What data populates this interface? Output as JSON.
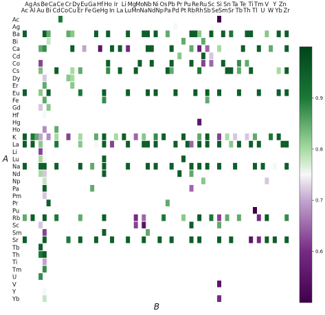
{
  "chart_data": {
    "type": "heatmap",
    "xlabel": "B",
    "ylabel": "A",
    "x_top_row1": [
      "Ag",
      "As",
      "Be",
      "Ca",
      "Ce",
      "Cr",
      "Dy",
      "Eu",
      "Ga",
      "Hf",
      "Ho",
      "Ir",
      "Li",
      "Mg",
      "Mo",
      "Nb",
      "Ni",
      "Os",
      "Pb",
      "Pr",
      "Pu",
      "Re",
      "Ru",
      "Sc",
      "Si",
      "Sn",
      "Ta",
      "Te",
      "Ti",
      "Tm",
      "V",
      "Y",
      "Zn"
    ],
    "x_top_row2": [
      "Ac",
      "Al",
      "Au",
      "Bi",
      "Cd",
      "Co",
      "Cu",
      "Er",
      "Fe",
      "Ge",
      "Hg",
      "In",
      "La",
      "Lu",
      "Mn",
      "Na",
      "Nd",
      "Np",
      "Pa",
      "Pd",
      "Pt",
      "Rb",
      "Rh",
      "Sb",
      "Se",
      "Sm",
      "Sr",
      "Tb",
      "Th",
      "Tl",
      "U",
      "W",
      "Yb",
      "Zr"
    ],
    "x_categories": [
      "Ac",
      "Ag",
      "Al",
      "As",
      "Au",
      "Be",
      "Bi",
      "Ca",
      "Cd",
      "Ce",
      "Co",
      "Cr",
      "Cu",
      "Dy",
      "Er",
      "Eu",
      "Fe",
      "Ga",
      "Ge",
      "Hf",
      "Hg",
      "Ho",
      "In",
      "Ir",
      "La",
      "Li",
      "Lu",
      "Mg",
      "Mn",
      "Mo",
      "Na",
      "Nb",
      "Nd",
      "Ni",
      "Np",
      "Os",
      "Pa",
      "Pb",
      "Pd",
      "Pr",
      "Pt",
      "Pu",
      "Rb",
      "Re",
      "Rh",
      "Ru",
      "Sb",
      "Sc",
      "Se",
      "Si",
      "Sm",
      "Sn",
      "Sr",
      "Ta",
      "Tb",
      "Te",
      "Th",
      "Ti",
      "Tl",
      "Tm",
      "U",
      "V",
      "W",
      "Y",
      "Yb",
      "Zn",
      "Zr"
    ],
    "y_categories": [
      "Ac",
      "Ag",
      "Ba",
      "Bi",
      "Ca",
      "Cd",
      "Co",
      "Cs",
      "Dy",
      "Er",
      "Eu",
      "Fe",
      "Gd",
      "Hf",
      "Hg",
      "Ho",
      "K",
      "La",
      "Li",
      "Lu",
      "Na",
      "Nd",
      "Np",
      "Pa",
      "Pm",
      "Pr",
      "Pu",
      "Rb",
      "Sc",
      "Sm",
      "Sr",
      "Tb",
      "Th",
      "Ti",
      "Tm",
      "U",
      "V",
      "Y",
      "Yb"
    ],
    "colorbar": {
      "min": 0.5,
      "max": 1.0,
      "ticks": [
        0.6,
        0.7,
        0.8,
        0.9
      ],
      "colormap": "PRGn"
    },
    "cells": [
      [
        "Ac",
        "Ce",
        0.9
      ],
      [
        "Ac",
        "Si",
        0.5
      ],
      [
        "Ag",
        "Pd",
        0.75
      ],
      [
        "Ba",
        "Ac",
        0.95
      ],
      [
        "Ba",
        "Be",
        0.95
      ],
      [
        "Ba",
        "Bi",
        0.85
      ],
      [
        "Ba",
        "Cr",
        0.85
      ],
      [
        "Ba",
        "Cu",
        0.82
      ],
      [
        "Ba",
        "Ge",
        0.95
      ],
      [
        "Ba",
        "Ho",
        0.95
      ],
      [
        "Ba",
        "Lu",
        0.95
      ],
      [
        "Ba",
        "Na",
        0.95
      ],
      [
        "Ba",
        "Nb",
        0.95
      ],
      [
        "Ba",
        "Ni",
        0.95
      ],
      [
        "Ba",
        "Pa",
        0.85
      ],
      [
        "Ba",
        "Rb",
        0.95
      ],
      [
        "Ba",
        "Re",
        0.95
      ],
      [
        "Ba",
        "Rh",
        0.82
      ],
      [
        "Ba",
        "Sc",
        0.95
      ],
      [
        "Ba",
        "Sm",
        0.95
      ],
      [
        "Ba",
        "Sr",
        0.9
      ],
      [
        "Ba",
        "Th",
        0.95
      ],
      [
        "Ba",
        "Ti",
        0.95
      ],
      [
        "Ba",
        "V",
        0.82
      ],
      [
        "Ba",
        "Yb",
        0.95
      ],
      [
        "Ba",
        "Zr",
        0.95
      ],
      [
        "Bi",
        "Bi",
        0.78
      ],
      [
        "Bi",
        "Pt",
        0.85
      ],
      [
        "Bi",
        "Ru",
        0.85
      ],
      [
        "Ca",
        "Au",
        0.85
      ],
      [
        "Ca",
        "Be",
        0.88
      ],
      [
        "Ca",
        "Cu",
        0.95
      ],
      [
        "Ca",
        "Eu",
        0.7
      ],
      [
        "Ca",
        "Hf",
        0.55
      ],
      [
        "Ca",
        "In",
        0.95
      ],
      [
        "Ca",
        "La",
        0.95
      ],
      [
        "Ca",
        "Lu",
        0.6
      ],
      [
        "Ca",
        "Nb",
        0.95
      ],
      [
        "Ca",
        "Nd",
        0.95
      ],
      [
        "Ca",
        "Pb",
        0.95
      ],
      [
        "Ca",
        "Rb",
        0.85
      ],
      [
        "Ca",
        "Rh",
        0.58
      ],
      [
        "Ca",
        "Sb",
        0.65
      ],
      [
        "Ca",
        "Si",
        0.8
      ],
      [
        "Ca",
        "Te",
        0.95
      ],
      [
        "Ca",
        "Tm",
        0.95
      ],
      [
        "Ca",
        "W",
        0.85
      ],
      [
        "Ca",
        "Zr",
        0.95
      ],
      [
        "Cd",
        "Pr",
        0.82
      ],
      [
        "Cd",
        "Ru",
        0.95
      ],
      [
        "Cd",
        "Sc",
        0.72
      ],
      [
        "Co",
        "Au",
        0.62
      ],
      [
        "Co",
        "Ho",
        0.95
      ],
      [
        "Co",
        "Mo",
        0.95
      ],
      [
        "Co",
        "Nd",
        0.95
      ],
      [
        "Co",
        "Pb",
        0.95
      ],
      [
        "Co",
        "Rb",
        0.95
      ],
      [
        "Co",
        "Ru",
        0.62
      ],
      [
        "Co",
        "Sc",
        0.65
      ],
      [
        "Co",
        "Sm",
        0.95
      ],
      [
        "Co",
        "Tb",
        0.88
      ],
      [
        "Co",
        "Th",
        0.85
      ],
      [
        "Cs",
        "Au",
        0.83
      ],
      [
        "Cs",
        "Cd",
        0.95
      ],
      [
        "Cs",
        "Cu",
        0.8
      ],
      [
        "Cs",
        "Er",
        0.85
      ],
      [
        "Cs",
        "Ho",
        0.88
      ],
      [
        "Cs",
        "La",
        0.95
      ],
      [
        "Cs",
        "Mn",
        0.95
      ],
      [
        "Cs",
        "Pa",
        0.95
      ],
      [
        "Cs",
        "Pb",
        0.85
      ],
      [
        "Cs",
        "Rh",
        0.9
      ],
      [
        "Cs",
        "Sn",
        0.95
      ],
      [
        "Cs",
        "Sr",
        0.95
      ],
      [
        "Cs",
        "Tb",
        0.85
      ],
      [
        "Cs",
        "Ti",
        0.95
      ],
      [
        "Cs",
        "Yb",
        0.8
      ],
      [
        "Cs",
        "Zr",
        0.95
      ],
      [
        "Dy",
        "Be",
        0.72
      ],
      [
        "Dy",
        "Cr",
        0.82
      ],
      [
        "Dy",
        "Cu",
        0.8
      ],
      [
        "Er",
        "Be",
        0.85
      ],
      [
        "Er",
        "Cu",
        0.82
      ],
      [
        "Eu",
        "Ac",
        0.95
      ],
      [
        "Eu",
        "Au",
        0.82
      ],
      [
        "Eu",
        "Bi",
        0.95
      ],
      [
        "Eu",
        "Er",
        0.9
      ],
      [
        "Eu",
        "Hg",
        0.95
      ],
      [
        "Eu",
        "Lu",
        0.95
      ],
      [
        "Eu",
        "Nb",
        0.95
      ],
      [
        "Eu",
        "Ni",
        0.95
      ],
      [
        "Eu",
        "Pd",
        0.95
      ],
      [
        "Eu",
        "Re",
        0.95
      ],
      [
        "Eu",
        "Sb",
        0.95
      ],
      [
        "Eu",
        "Si",
        0.95
      ],
      [
        "Eu",
        "Tb",
        0.95
      ],
      [
        "Eu",
        "Tm",
        0.95
      ],
      [
        "Eu",
        "Yb",
        0.95
      ],
      [
        "Eu",
        "Zr",
        0.95
      ],
      [
        "Fe",
        "Be",
        0.85
      ],
      [
        "Fe",
        "Hg",
        0.88
      ],
      [
        "Fe",
        "Sb",
        0.85
      ],
      [
        "Gd",
        "Au",
        0.72
      ],
      [
        "Gd",
        "Bi",
        0.82
      ],
      [
        "Hf",
        "Be",
        0.75
      ],
      [
        "Hg",
        "Rh",
        0.55
      ],
      [
        "Ho",
        "Be",
        0.68
      ],
      [
        "Ho",
        "Cd",
        0.85
      ],
      [
        "K",
        "Ac",
        0.95
      ],
      [
        "K",
        "Al",
        0.9
      ],
      [
        "K",
        "As",
        0.85
      ],
      [
        "K",
        "Au",
        0.7
      ],
      [
        "K",
        "Bi",
        0.68
      ],
      [
        "K",
        "Cd",
        0.8
      ],
      [
        "K",
        "Cr",
        0.62
      ],
      [
        "K",
        "Er",
        0.8
      ],
      [
        "K",
        "Ge",
        0.85
      ],
      [
        "K",
        "Hg",
        0.95
      ],
      [
        "K",
        "Ir",
        0.8
      ],
      [
        "K",
        "Li",
        0.95
      ],
      [
        "K",
        "Mn",
        0.65
      ],
      [
        "K",
        "Na",
        0.82
      ],
      [
        "K",
        "Ni",
        0.88
      ],
      [
        "K",
        "Os",
        0.95
      ],
      [
        "K",
        "Pt",
        0.95
      ],
      [
        "K",
        "Rh",
        0.85
      ],
      [
        "K",
        "Sb",
        0.95
      ],
      [
        "K",
        "Si",
        0.62
      ],
      [
        "K",
        "Sn",
        0.8
      ],
      [
        "K",
        "Ta",
        0.72
      ],
      [
        "K",
        "Th",
        0.72
      ],
      [
        "K",
        "Ti",
        0.75
      ],
      [
        "K",
        "Tl",
        0.85
      ],
      [
        "K",
        "W",
        0.9
      ],
      [
        "K",
        "Yb",
        0.95
      ],
      [
        "La",
        "Ac",
        0.95
      ],
      [
        "La",
        "Al",
        0.95
      ],
      [
        "La",
        "Au",
        0.82
      ],
      [
        "La",
        "Cd",
        0.9
      ],
      [
        "La",
        "Er",
        0.82
      ],
      [
        "La",
        "Ge",
        0.75
      ],
      [
        "La",
        "Hg",
        0.95
      ],
      [
        "La",
        "In",
        0.62
      ],
      [
        "La",
        "Lu",
        0.95
      ],
      [
        "La",
        "Na",
        0.95
      ],
      [
        "La",
        "Nb",
        0.95
      ],
      [
        "La",
        "Ni",
        0.95
      ],
      [
        "La",
        "Pd",
        0.95
      ],
      [
        "La",
        "Pu",
        0.95
      ],
      [
        "La",
        "Rb",
        0.65
      ],
      [
        "La",
        "Rh",
        0.95
      ],
      [
        "La",
        "Sb",
        0.95
      ],
      [
        "La",
        "Si",
        0.95
      ],
      [
        "La",
        "Sr",
        0.82
      ],
      [
        "La",
        "Tb",
        0.95
      ],
      [
        "La",
        "Ti",
        0.95
      ],
      [
        "La",
        "Tm",
        0.95
      ],
      [
        "La",
        "Zn",
        0.95
      ],
      [
        "La",
        "Zr",
        0.95
      ],
      [
        "Li",
        "Au",
        0.62
      ],
      [
        "Li",
        "Be",
        0.75
      ],
      [
        "Lu",
        "Au",
        0.8
      ],
      [
        "Lu",
        "Be",
        0.75
      ],
      [
        "Lu",
        "Hg",
        0.95
      ],
      [
        "Lu",
        "Pt",
        0.95
      ],
      [
        "Na",
        "Ac",
        0.95
      ],
      [
        "Na",
        "Au",
        0.95
      ],
      [
        "Na",
        "Be",
        0.95
      ],
      [
        "Na",
        "Cd",
        0.95
      ],
      [
        "Na",
        "Er",
        0.95
      ],
      [
        "Na",
        "Ga",
        0.85
      ],
      [
        "Na",
        "Hg",
        0.95
      ],
      [
        "Na",
        "Lu",
        0.95
      ],
      [
        "Na",
        "Nb",
        0.95
      ],
      [
        "Na",
        "Ni",
        0.95
      ],
      [
        "Na",
        "Pb",
        0.95
      ],
      [
        "Na",
        "Rb",
        0.95
      ],
      [
        "Na",
        "Rh",
        0.95
      ],
      [
        "Na",
        "Sb",
        0.95
      ],
      [
        "Na",
        "Si",
        0.95
      ],
      [
        "Na",
        "Ta",
        0.95
      ],
      [
        "Na",
        "Tl",
        0.95
      ],
      [
        "Na",
        "U",
        0.95
      ],
      [
        "Na",
        "Y",
        0.75
      ],
      [
        "Na",
        "Zr",
        0.95
      ],
      [
        "Nd",
        "Au",
        0.8
      ],
      [
        "Nd",
        "Be",
        0.72
      ],
      [
        "Nd",
        "Hg",
        0.95
      ],
      [
        "Nd",
        "Pr",
        0.95
      ],
      [
        "Nd",
        "Rb",
        0.85
      ],
      [
        "Np",
        "Be",
        0.78
      ],
      [
        "Np",
        "Ru",
        0.82
      ],
      [
        "Np",
        "V",
        0.72
      ],
      [
        "Pa",
        "Be",
        0.95
      ],
      [
        "Pa",
        "Ga",
        0.85
      ],
      [
        "Pa",
        "Rb",
        0.65
      ],
      [
        "Pm",
        "Be",
        0.72
      ],
      [
        "Pr",
        "Bi",
        0.95
      ],
      [
        "Pr",
        "Pa",
        0.85
      ],
      [
        "Pu",
        "Tl",
        0.5
      ],
      [
        "Rb",
        "Ac",
        0.85
      ],
      [
        "Rb",
        "Al",
        0.95
      ],
      [
        "Rb",
        "Be",
        0.95
      ],
      [
        "Rb",
        "Cd",
        0.9
      ],
      [
        "Rb",
        "Er",
        0.85
      ],
      [
        "Rb",
        "Hg",
        0.95
      ],
      [
        "Rb",
        "Mn",
        0.6
      ],
      [
        "Rb",
        "Na",
        0.65
      ],
      [
        "Rb",
        "Os",
        0.9
      ],
      [
        "Rb",
        "Pt",
        0.82
      ],
      [
        "Rb",
        "Rh",
        0.95
      ],
      [
        "Rb",
        "Sc",
        0.9
      ],
      [
        "Rb",
        "Si",
        0.62
      ],
      [
        "Rb",
        "Sn",
        0.85
      ],
      [
        "Rb",
        "Tb",
        0.85
      ],
      [
        "Rb",
        "Tm",
        0.6
      ],
      [
        "Rb",
        "V",
        0.95
      ],
      [
        "Rb",
        "Zr",
        0.88
      ],
      [
        "Sc",
        "Au",
        0.72
      ],
      [
        "Sc",
        "Mn",
        0.62
      ],
      [
        "Sc",
        "Na",
        0.55
      ],
      [
        "Sc",
        "Rb",
        0.95
      ],
      [
        "Sc",
        "Si",
        0.85
      ],
      [
        "Sm",
        "Be",
        0.62
      ],
      [
        "Sm",
        "Hg",
        0.95
      ],
      [
        "Sm",
        "Nb",
        0.85
      ],
      [
        "Sr",
        "Ac",
        0.95
      ],
      [
        "Sr",
        "Be",
        0.95
      ],
      [
        "Sr",
        "Cr",
        0.9
      ],
      [
        "Sr",
        "Er",
        0.95
      ],
      [
        "Sr",
        "Ge",
        0.95
      ],
      [
        "Sr",
        "In",
        0.95
      ],
      [
        "Sr",
        "Lu",
        0.95
      ],
      [
        "Sr",
        "Na",
        0.95
      ],
      [
        "Sr",
        "Np",
        0.95
      ],
      [
        "Sr",
        "Pb",
        0.95
      ],
      [
        "Sr",
        "Rb",
        0.95
      ],
      [
        "Sr",
        "Rh",
        0.95
      ],
      [
        "Sr",
        "Si",
        0.95
      ],
      [
        "Sr",
        "Sr",
        0.95
      ],
      [
        "Sr",
        "Ti",
        0.55
      ],
      [
        "Sr",
        "Tm",
        0.6
      ],
      [
        "Sr",
        "V",
        0.95
      ],
      [
        "Sr",
        "Y",
        0.95
      ],
      [
        "Sr",
        "Zr",
        0.95
      ],
      [
        "Tb",
        "Au",
        0.95
      ],
      [
        "Th",
        "Au",
        0.9
      ],
      [
        "Th",
        "Be",
        0.95
      ],
      [
        "Ti",
        "Be",
        0.7
      ],
      [
        "Tm",
        "Be",
        0.88
      ],
      [
        "U",
        "Au",
        0.88
      ],
      [
        "V",
        "Si",
        0.55
      ],
      [
        "Y",
        "Be",
        0.75
      ],
      [
        "Yb",
        "Be",
        0.78
      ],
      [
        "Yb",
        "Si",
        0.6
      ]
    ]
  }
}
